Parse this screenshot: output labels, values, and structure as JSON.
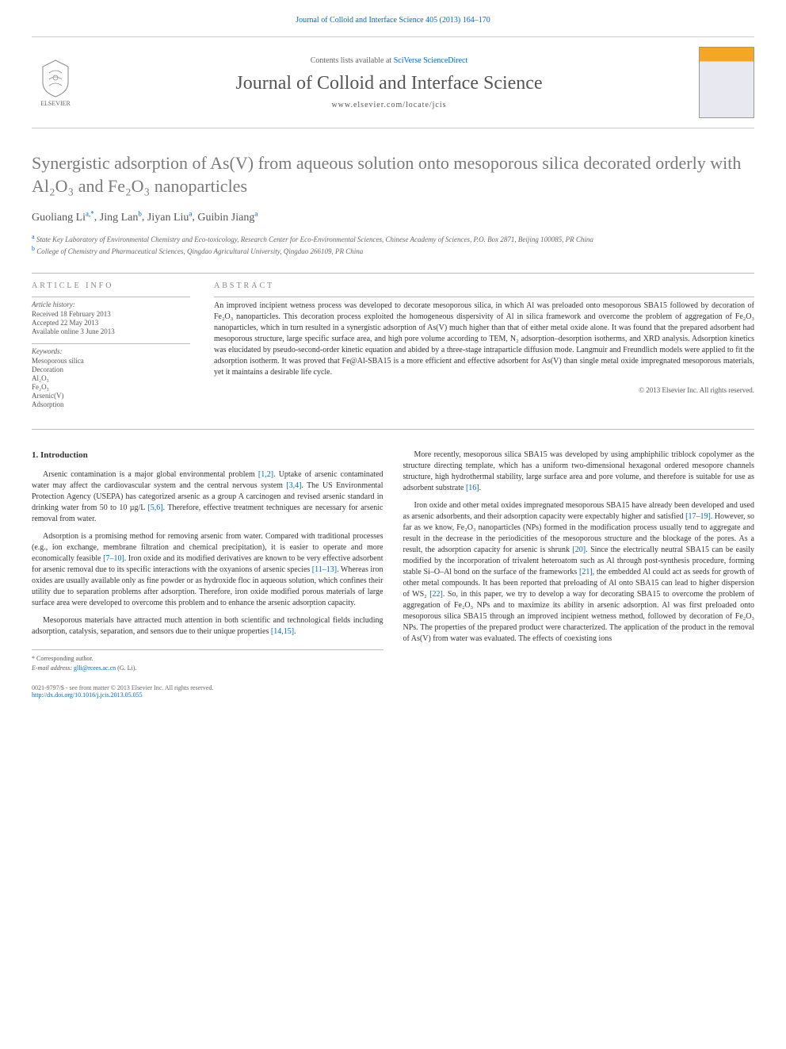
{
  "citation_line": "Journal of Colloid and Interface Science 405 (2013) 164–170",
  "header": {
    "contents_prefix": "Contents lists available at ",
    "contents_link": "SciVerse ScienceDirect",
    "journal": "Journal of Colloid and Interface Science",
    "url": "www.elsevier.com/locate/jcis",
    "publisher": "ELSEVIER"
  },
  "title": "Synergistic adsorption of As(V) from aqueous solution onto mesoporous silica decorated orderly with Al₂O₃ and Fe₂O₃ nanoparticles",
  "authors_html": "Guoliang Li",
  "author_list": [
    {
      "name": "Guoliang Li",
      "marks": "a,*"
    },
    {
      "name": "Jing Lan",
      "marks": "b"
    },
    {
      "name": "Jiyan Liu",
      "marks": "a"
    },
    {
      "name": "Guibin Jiang",
      "marks": "a"
    }
  ],
  "affiliations": [
    {
      "mark": "a",
      "text": "State Key Laboratory of Environmental Chemistry and Eco-toxicology, Research Center for Eco-Environmental Sciences, Chinese Academy of Sciences, P.O. Box 2871, Beijing 100085, PR China"
    },
    {
      "mark": "b",
      "text": "College of Chemistry and Pharmaceutical Sciences, Qingdao Agricultural University, Qingdao 266109, PR China"
    }
  ],
  "article_info": {
    "heading": "ARTICLE INFO",
    "history_label": "Article history:",
    "received": "Received 18 February 2013",
    "accepted": "Accepted 22 May 2013",
    "online": "Available online 3 June 2013",
    "keywords_label": "Keywords:",
    "keywords": [
      "Mesoporous silica",
      "Decoration",
      "Al₂O₃",
      "Fe₂O₃",
      "Arsenic(V)",
      "Adsorption"
    ]
  },
  "abstract": {
    "heading": "ABSTRACT",
    "text": "An improved incipient wetness process was developed to decorate mesoporous silica, in which Al was preloaded onto mesoporous SBA15 followed by decoration of Fe₂O₃ nanoparticles. This decoration process exploited the homogeneous dispersivity of Al in silica framework and overcome the problem of aggregation of Fe₂O₃ nanoparticles, which in turn resulted in a synergistic adsorption of As(V) much higher than that of either metal oxide alone. It was found that the prepared adsorbent had mesoporous structure, large specific surface area, and high pore volume according to TEM, N₂ adsorption–desorption isotherms, and XRD analysis. Adsorption kinetics was elucidated by pseudo-second-order kinetic equation and abided by a three-stage intraparticle diffusion mode. Langmuir and Freundlich models were applied to fit the adsorption isotherm. It was proved that Fe@Al-SBA15 is a more efficient and effective adsorbent for As(V) than single metal oxide impregnated mesoporous materials, yet it maintains a desirable life cycle.",
    "copyright": "© 2013 Elsevier Inc. All rights reserved."
  },
  "body": {
    "section_number": "1.",
    "section_title": "Introduction",
    "paragraphs_left": [
      "Arsenic contamination is a major global environmental problem [1,2]. Uptake of arsenic contaminated water may affect the cardiovascular system and the central nervous system [3,4]. The US Environmental Protection Agency (USEPA) has categorized arsenic as a group A carcinogen and revised arsenic standard in drinking water from 50 to 10 µg/L [5,6]. Therefore, effective treatment techniques are necessary for arsenic removal from water.",
      "Adsorption is a promising method for removing arsenic from water. Compared with traditional processes (e.g., ion exchange, membrane filtration and chemical precipitation), it is easier to operate and more economically feasible [7–10]. Iron oxide and its modified derivatives are known to be very effective adsorbent for arsenic removal due to its specific interactions with the oxyanions of arsenic species [11–13]. Whereas iron oxides are usually available only as fine powder or as hydroxide floc in aqueous solution, which confines their utility due to separation problems after adsorption. Therefore, iron oxide modified porous materials of large surface area were developed to overcome this problem and to enhance the arsenic adsorption capacity.",
      "Mesoporous materials have attracted much attention in both scientific and technological fields including adsorption, catalysis, separation, and sensors due to their unique properties [14,15]."
    ],
    "paragraphs_right": [
      "More recently, mesoporous silica SBA15 was developed by using amphiphilic triblock copolymer as the structure directing template, which has a uniform two-dimensional hexagonal ordered mesopore channels structure, high hydrothermal stability, large surface area and pore volume, and therefore is suitable for use as adsorbent substrate [16].",
      "Iron oxide and other metal oxides impregnated mesoporous SBA15 have already been developed and used as arsenic adsorbents, and their adsorption capacity were expectably higher and satisfied [17–19]. However, so far as we know, Fe₂O₃ nanoparticles (NPs) formed in the modification process usually tend to aggregate and result in the decrease in the periodicities of the mesoporous structure and the blockage of the pores. As a result, the adsorption capacity for arsenic is shrunk [20]. Since the electrically neutral SBA15 can be easily modified by the incorporation of trivalent heteroatom such as Al through post-synthesis procedure, forming stable Si–O–Al bond on the surface of the frameworks [21], the embedded Al could act as seeds for growth of other metal compounds. It has been reported that preloading of Al onto SBA15 can lead to higher dispersion of WS₂ [22]. So, in this paper, we try to develop a way for decorating SBA15 to overcome the problem of aggregation of Fe₂O₃ NPs and to maximize its ability in arsenic adsorption. Al was first preloaded onto mesoporous silica SBA15 through an improved incipient wetness method, followed by decoration of Fe₂O₃ NPs. The properties of the prepared product were characterized. The application of the product in the removal of As(V) from water was evaluated. The effects of coexisting ions"
    ]
  },
  "footnote": {
    "corr": "* Corresponding author.",
    "email_label": "E-mail address:",
    "email": "glli@rcees.ac.cn",
    "email_name": "(G. Li)."
  },
  "footer": {
    "issn": "0021-9797/$ - see front matter © 2013 Elsevier Inc. All rights reserved.",
    "doi": "http://dx.doi.org/10.1016/j.jcis.2013.05.055"
  },
  "colors": {
    "link": "#0066cc",
    "text": "#333333",
    "muted": "#7a7a7a",
    "border": "#bbbbbb"
  }
}
